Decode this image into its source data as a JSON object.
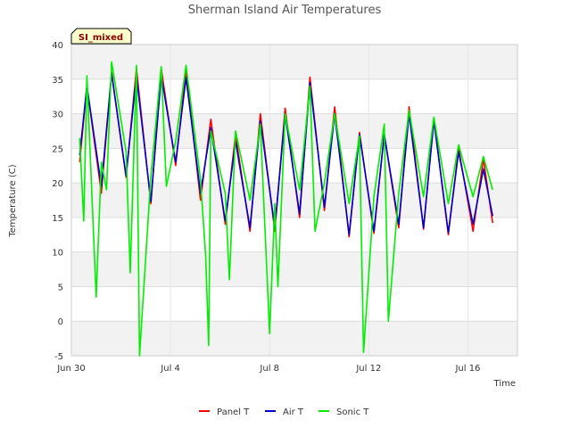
{
  "chart_data": {
    "type": "line",
    "title": "Sherman Island Air Temperatures",
    "xlabel": "Time",
    "ylabel": "Temperature (C)",
    "badge": "SI_mixed",
    "ylim": [
      -5,
      40
    ],
    "xlim": [
      "2016-06-30",
      "2016-07-18"
    ],
    "yticks": [
      -5,
      0,
      5,
      10,
      15,
      20,
      25,
      30,
      35,
      40
    ],
    "xticks": [
      {
        "date": "2016-06-30",
        "label": "Jun 30"
      },
      {
        "date": "2016-07-04",
        "label": "Jul 4"
      },
      {
        "date": "2016-07-08",
        "label": "Jul 8"
      },
      {
        "date": "2016-07-12",
        "label": "Jul 12"
      },
      {
        "date": "2016-07-16",
        "label": "Jul 16"
      }
    ],
    "grid": true,
    "band_shading": true,
    "legend_position": "bottom",
    "series": [
      {
        "name": "Panel T",
        "color": "#ff0000",
        "points": [
          [
            "2016-06-30 08:00",
            23.0
          ],
          [
            "2016-06-30 15:00",
            34.0
          ],
          [
            "2016-07-01 05:00",
            18.5
          ],
          [
            "2016-07-01 15:00",
            36.0
          ],
          [
            "2016-07-02 05:00",
            20.8
          ],
          [
            "2016-07-02 15:00",
            36.5
          ],
          [
            "2016-07-03 05:00",
            17.0
          ],
          [
            "2016-07-03 15:00",
            36.5
          ],
          [
            "2016-07-04 05:00",
            22.5
          ],
          [
            "2016-07-04 15:00",
            36.3
          ],
          [
            "2016-07-05 05:00",
            17.5
          ],
          [
            "2016-07-05 15:00",
            29.2
          ],
          [
            "2016-07-06 05:00",
            14.0
          ],
          [
            "2016-07-06 15:00",
            27.0
          ],
          [
            "2016-07-07 05:00",
            13.0
          ],
          [
            "2016-07-07 15:00",
            30.0
          ],
          [
            "2016-07-08 05:00",
            13.0
          ],
          [
            "2016-07-08 15:00",
            30.8
          ],
          [
            "2016-07-09 05:00",
            15.0
          ],
          [
            "2016-07-09 15:00",
            35.3
          ],
          [
            "2016-07-10 05:00",
            16.0
          ],
          [
            "2016-07-10 15:00",
            31.0
          ],
          [
            "2016-07-11 05:00",
            12.2
          ],
          [
            "2016-07-11 15:00",
            27.3
          ],
          [
            "2016-07-12 05:00",
            12.7
          ],
          [
            "2016-07-12 15:00",
            27.0
          ],
          [
            "2016-07-13 05:00",
            13.5
          ],
          [
            "2016-07-13 15:00",
            31.0
          ],
          [
            "2016-07-14 05:00",
            13.3
          ],
          [
            "2016-07-14 15:00",
            29.3
          ],
          [
            "2016-07-15 05:00",
            12.5
          ],
          [
            "2016-07-15 15:00",
            25.0
          ],
          [
            "2016-07-16 05:00",
            13.0
          ],
          [
            "2016-07-16 15:00",
            23.5
          ],
          [
            "2016-07-17 00:00",
            14.2
          ]
        ]
      },
      {
        "name": "Air T",
        "color": "#0000cc",
        "points": [
          [
            "2016-06-30 08:00",
            24.0
          ],
          [
            "2016-06-30 15:00",
            34.0
          ],
          [
            "2016-07-01 05:00",
            19.5
          ],
          [
            "2016-07-01 15:00",
            35.8
          ],
          [
            "2016-07-02 05:00",
            21.0
          ],
          [
            "2016-07-02 15:00",
            35.5
          ],
          [
            "2016-07-03 05:00",
            17.3
          ],
          [
            "2016-07-03 15:00",
            35.5
          ],
          [
            "2016-07-04 05:00",
            23.0
          ],
          [
            "2016-07-04 15:00",
            35.2
          ],
          [
            "2016-07-05 05:00",
            18.5
          ],
          [
            "2016-07-05 15:00",
            28.0
          ],
          [
            "2016-07-06 05:00",
            14.5
          ],
          [
            "2016-07-06 15:00",
            26.0
          ],
          [
            "2016-07-07 05:00",
            13.5
          ],
          [
            "2016-07-07 15:00",
            29.0
          ],
          [
            "2016-07-08 05:00",
            13.5
          ],
          [
            "2016-07-08 15:00",
            30.0
          ],
          [
            "2016-07-09 05:00",
            15.5
          ],
          [
            "2016-07-09 15:00",
            34.5
          ],
          [
            "2016-07-10 05:00",
            16.5
          ],
          [
            "2016-07-10 15:00",
            30.0
          ],
          [
            "2016-07-11 05:00",
            12.5
          ],
          [
            "2016-07-11 15:00",
            27.0
          ],
          [
            "2016-07-12 05:00",
            13.0
          ],
          [
            "2016-07-12 15:00",
            27.0
          ],
          [
            "2016-07-13 05:00",
            14.0
          ],
          [
            "2016-07-13 15:00",
            30.0
          ],
          [
            "2016-07-14 05:00",
            13.5
          ],
          [
            "2016-07-14 15:00",
            29.0
          ],
          [
            "2016-07-15 05:00",
            12.8
          ],
          [
            "2016-07-15 15:00",
            24.5
          ],
          [
            "2016-07-16 05:00",
            14.0
          ],
          [
            "2016-07-16 15:00",
            22.0
          ],
          [
            "2016-07-17 00:00",
            15.2
          ]
        ]
      },
      {
        "name": "Sonic T",
        "color": "#00ee00",
        "points": [
          [
            "2016-06-30 08:00",
            26.5
          ],
          [
            "2016-06-30 12:00",
            14.5
          ],
          [
            "2016-06-30 15:00",
            35.5
          ],
          [
            "2016-07-01 00:00",
            3.5
          ],
          [
            "2016-07-01 05:00",
            23.0
          ],
          [
            "2016-07-01 10:00",
            19.0
          ],
          [
            "2016-07-01 15:00",
            37.5
          ],
          [
            "2016-07-02 05:00",
            24.5
          ],
          [
            "2016-07-02 09:00",
            7.0
          ],
          [
            "2016-07-02 15:00",
            37.0
          ],
          [
            "2016-07-02 18:00",
            -5.0
          ],
          [
            "2016-07-03 05:00",
            21.0
          ],
          [
            "2016-07-03 15:00",
            36.8
          ],
          [
            "2016-07-03 20:00",
            19.5
          ],
          [
            "2016-07-04 05:00",
            26.0
          ],
          [
            "2016-07-04 15:00",
            37.0
          ],
          [
            "2016-07-05 05:00",
            20.5
          ],
          [
            "2016-07-05 10:00",
            9.5
          ],
          [
            "2016-07-05 13:00",
            -3.5
          ],
          [
            "2016-07-05 15:00",
            27.5
          ],
          [
            "2016-07-06 05:00",
            18.5
          ],
          [
            "2016-07-06 09:00",
            6.0
          ],
          [
            "2016-07-06 15:00",
            27.5
          ],
          [
            "2016-07-07 05:00",
            17.5
          ],
          [
            "2016-07-07 15:00",
            28.5
          ],
          [
            "2016-07-08 00:00",
            -1.8
          ],
          [
            "2016-07-08 05:00",
            17.0
          ],
          [
            "2016-07-08 08:00",
            5.0
          ],
          [
            "2016-07-08 15:00",
            30.0
          ],
          [
            "2016-07-09 05:00",
            19.0
          ],
          [
            "2016-07-09 15:00",
            34.0
          ],
          [
            "2016-07-09 20:00",
            13.0
          ],
          [
            "2016-07-10 05:00",
            20.0
          ],
          [
            "2016-07-10 15:00",
            30.0
          ],
          [
            "2016-07-11 05:00",
            17.0
          ],
          [
            "2016-07-11 15:00",
            26.8
          ],
          [
            "2016-07-11 19:00",
            -4.5
          ],
          [
            "2016-07-12 05:00",
            18.0
          ],
          [
            "2016-07-12 15:00",
            28.5
          ],
          [
            "2016-07-12 19:00",
            0.0
          ],
          [
            "2016-07-13 05:00",
            18.5
          ],
          [
            "2016-07-13 15:00",
            30.5
          ],
          [
            "2016-07-14 05:00",
            18.0
          ],
          [
            "2016-07-14 15:00",
            29.5
          ],
          [
            "2016-07-15 05:00",
            17.0
          ],
          [
            "2016-07-15 15:00",
            25.5
          ],
          [
            "2016-07-16 05:00",
            18.0
          ],
          [
            "2016-07-16 15:00",
            23.8
          ],
          [
            "2016-07-17 00:00",
            19.0
          ]
        ]
      }
    ]
  }
}
